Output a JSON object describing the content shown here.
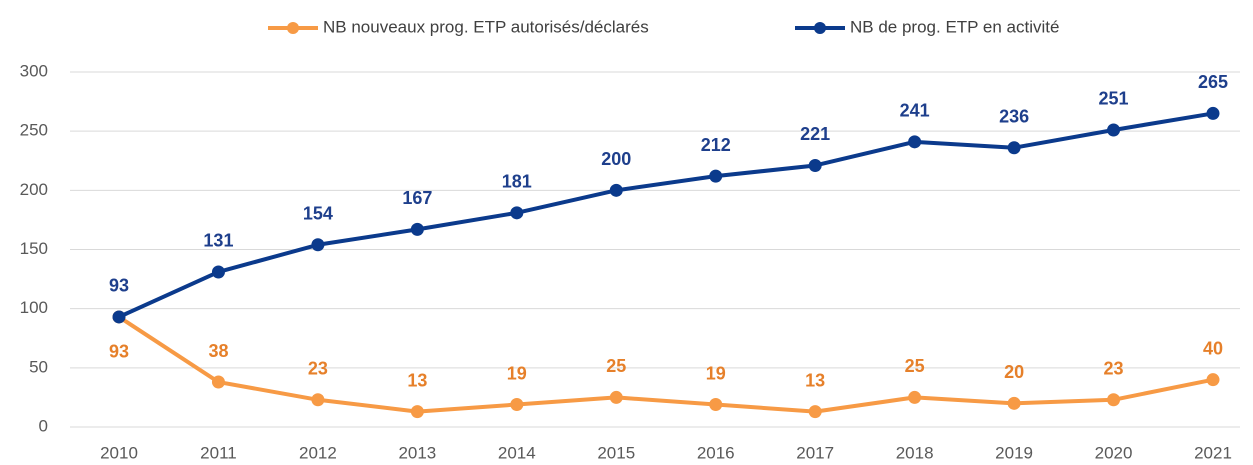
{
  "chart_data": {
    "type": "line",
    "categories": [
      "2010",
      "2011",
      "2012",
      "2013",
      "2014",
      "2015",
      "2016",
      "2017",
      "2018",
      "2019",
      "2020",
      "2021"
    ],
    "series": [
      {
        "name": "NB nouveaux prog. ETP autorisés/déclarés",
        "color": "#f79a45",
        "values": [
          93,
          38,
          23,
          13,
          19,
          25,
          19,
          13,
          25,
          20,
          23,
          40
        ]
      },
      {
        "name": "NB de prog. ETP en activité",
        "color": "#0b3a8c",
        "values": [
          93,
          131,
          154,
          167,
          181,
          200,
          212,
          221,
          241,
          236,
          251,
          265
        ]
      }
    ],
    "ylim": [
      0,
      300
    ],
    "yticks": [
      0,
      50,
      100,
      150,
      200,
      250,
      300
    ],
    "grid": true,
    "legend": "top"
  }
}
